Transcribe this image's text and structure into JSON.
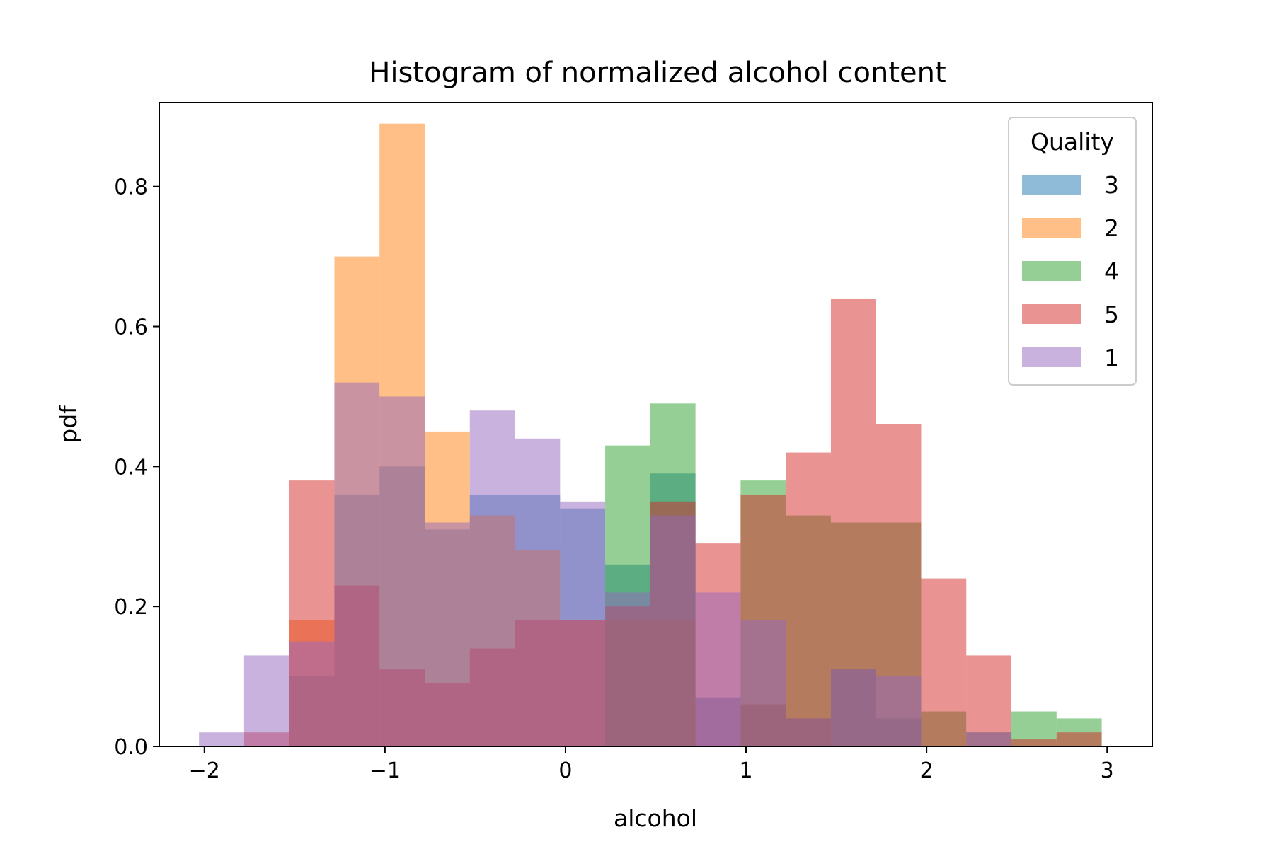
{
  "chart_data": {
    "type": "bar",
    "title": "Histogram of normalized alcohol content",
    "xlabel": "alcohol",
    "ylabel": "pdf",
    "xlim": [
      -2.25,
      3.25
    ],
    "ylim": [
      0,
      0.92
    ],
    "xticks": [
      -2,
      -1,
      0,
      1,
      2,
      3
    ],
    "xtick_labels": [
      "−2",
      "−1",
      "0",
      "1",
      "2",
      "3"
    ],
    "yticks": [
      0.0,
      0.2,
      0.4,
      0.6,
      0.8
    ],
    "ytick_labels": [
      "0.0",
      "0.2",
      "0.4",
      "0.6",
      "0.8"
    ],
    "bin_edges": [
      -2.03,
      -1.78,
      -1.53,
      -1.28,
      -1.03,
      -0.78,
      -0.53,
      -0.28,
      -0.03,
      0.22,
      0.47,
      0.72,
      0.97,
      1.22,
      1.47,
      1.72,
      1.97,
      2.22,
      2.47,
      2.72,
      2.97
    ],
    "legend": {
      "title": "Quality",
      "position": "top-right"
    },
    "grid": false,
    "series": [
      {
        "name": "3",
        "color": "#1f77b4",
        "values": [
          0,
          0,
          0.1,
          0.36,
          0.4,
          0.31,
          0.36,
          0.36,
          0.34,
          0.26,
          0.39,
          0.07,
          0.06,
          0.04,
          0.11,
          0.04,
          0,
          0,
          0,
          0
        ]
      },
      {
        "name": "2",
        "color": "#ff7f0e",
        "values": [
          0,
          0,
          0.18,
          0.7,
          0.89,
          0.45,
          0.33,
          0.28,
          0.18,
          0.18,
          0.18,
          0,
          0.06,
          0.04,
          0,
          0,
          0,
          0,
          0,
          0
        ]
      },
      {
        "name": "4",
        "color": "#2ca02c",
        "values": [
          0,
          0,
          0,
          0,
          0,
          0,
          0,
          0,
          0,
          0.43,
          0.49,
          0,
          0.38,
          0.33,
          0.32,
          0.32,
          0.05,
          0.02,
          0.05,
          0.04
        ]
      },
      {
        "name": "5",
        "color": "#d62728",
        "values": [
          0,
          0.02,
          0.38,
          0.23,
          0.11,
          0.09,
          0.14,
          0.18,
          0.18,
          0.2,
          0.35,
          0.29,
          0.36,
          0.42,
          0.64,
          0.46,
          0.24,
          0.13,
          0.01,
          0.02
        ]
      },
      {
        "name": "1",
        "color": "#9467bd",
        "values": [
          0.02,
          0.13,
          0.15,
          0.52,
          0.5,
          0.32,
          0.48,
          0.44,
          0.35,
          0.22,
          0.33,
          0.22,
          0.18,
          0.04,
          0.11,
          0.1,
          0,
          0.02,
          0,
          0
        ]
      }
    ]
  }
}
